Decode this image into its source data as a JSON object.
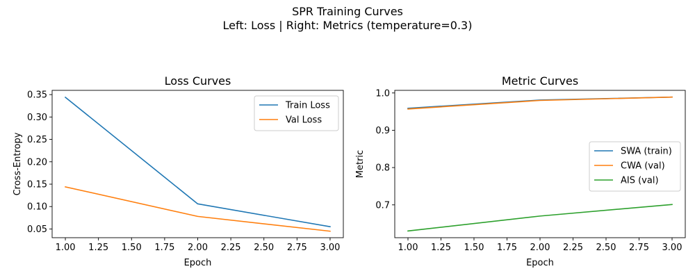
{
  "figure": {
    "suptitle_line1": "SPR Training Curves",
    "suptitle_line2": "Left: Loss   |   Right: Metrics  (temperature=0.3)"
  },
  "chart_data": [
    {
      "type": "line",
      "title": "Loss Curves",
      "xlabel": "Epoch",
      "ylabel": "Cross-Entropy",
      "xlim": [
        0.9,
        3.1
      ],
      "ylim": [
        0.0305,
        0.3595
      ],
      "xticks": [
        1.0,
        1.25,
        1.5,
        1.75,
        2.0,
        2.25,
        2.5,
        2.75,
        3.0
      ],
      "xtick_labels": [
        "1.00",
        "1.25",
        "1.50",
        "1.75",
        "2.00",
        "2.25",
        "2.50",
        "2.75",
        "3.00"
      ],
      "yticks": [
        0.05,
        0.1,
        0.15,
        0.2,
        0.25,
        0.3,
        0.35
      ],
      "ytick_labels": [
        "0.05",
        "0.10",
        "0.15",
        "0.20",
        "0.25",
        "0.30",
        "0.35"
      ],
      "grid": false,
      "legend_position": "upper right",
      "x": [
        1,
        2,
        3
      ],
      "series": [
        {
          "name": "Train Loss",
          "color": "#1f77b4",
          "values": [
            0.344,
            0.106,
            0.055
          ]
        },
        {
          "name": "Val Loss",
          "color": "#ff7f0e",
          "values": [
            0.144,
            0.078,
            0.045
          ]
        }
      ]
    },
    {
      "type": "line",
      "title": "Metric Curves",
      "xlabel": "Epoch",
      "ylabel": "Metric",
      "xlim": [
        0.9,
        3.1
      ],
      "ylim": [
        0.612,
        1.007
      ],
      "xticks": [
        1.0,
        1.25,
        1.5,
        1.75,
        2.0,
        2.25,
        2.5,
        2.75,
        3.0
      ],
      "xtick_labels": [
        "1.00",
        "1.25",
        "1.50",
        "1.75",
        "2.00",
        "2.25",
        "2.50",
        "2.75",
        "3.00"
      ],
      "yticks": [
        0.7,
        0.8,
        0.9,
        1.0
      ],
      "ytick_labels": [
        "0.7",
        "0.8",
        "0.9",
        "1.0"
      ],
      "grid": false,
      "legend_position": "center right",
      "x": [
        1,
        2,
        3
      ],
      "series": [
        {
          "name": "SWA (train)",
          "color": "#1f77b4",
          "values": [
            0.959,
            0.981,
            0.989
          ]
        },
        {
          "name": "CWA (val)",
          "color": "#ff7f0e",
          "values": [
            0.957,
            0.98,
            0.989
          ]
        },
        {
          "name": "AIS (val)",
          "color": "#2ca02c",
          "values": [
            0.63,
            0.67,
            0.701
          ]
        }
      ]
    }
  ]
}
